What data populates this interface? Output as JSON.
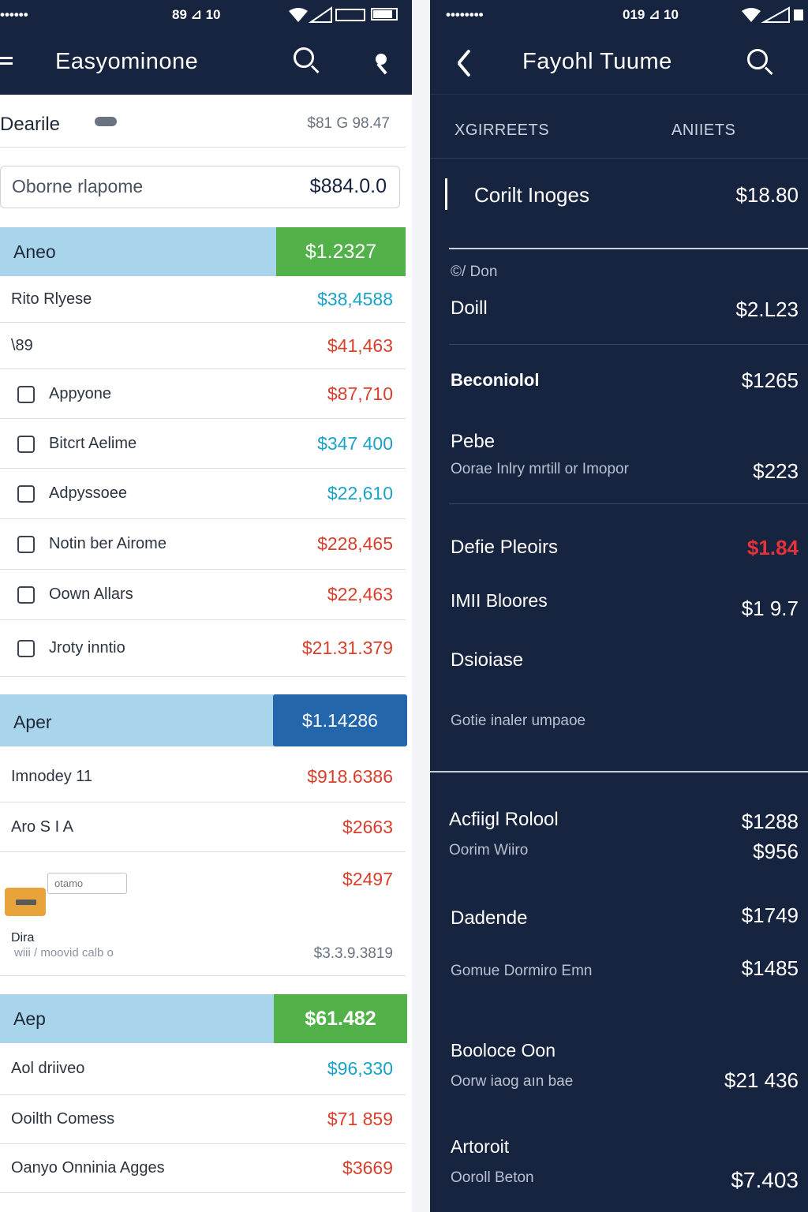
{
  "left": {
    "status": {
      "carrier": "••••••",
      "time": "89 ⊿ 10"
    },
    "header": {
      "title": "Easyominone"
    },
    "account": {
      "label": "Dearile",
      "value": "$81 G 98.47"
    },
    "search": {
      "placeholder": "Oborne rlapome",
      "value": "$884.0.0"
    },
    "section1": {
      "label": "Aneo",
      "amount": "$1.2327",
      "chip_color": "#53b14a",
      "rows": [
        {
          "label": "Rito Rlyese",
          "amount": "$38,4588",
          "color": "teal"
        },
        {
          "label": "\\89",
          "amount": "$41,463",
          "color": "red"
        },
        {
          "label": "Appyone",
          "amount": "$87,710",
          "color": "red",
          "icon": "grid-icon"
        },
        {
          "label": "Bitcrt Aelime",
          "amount": "$347 400",
          "color": "teal",
          "icon": "checkbox-icon"
        },
        {
          "label": "Adpyssoee",
          "amount": "$22,610",
          "color": "teal",
          "icon": "document-icon"
        },
        {
          "label": "Notin ber Airome",
          "amount": "$228,465",
          "color": "red",
          "icon": "file-icon"
        },
        {
          "label": "Oown Allars",
          "amount": "$22,463",
          "color": "red",
          "icon": "calendar-icon"
        },
        {
          "label": "Jroty inntio",
          "amount": "$21.31.379",
          "color": "red",
          "icon": "transfer-icon"
        }
      ]
    },
    "section2": {
      "label": "Aper",
      "amount": "$1.14286",
      "chip_color": "#2466ab",
      "rows": [
        {
          "label": "Imnodey 11",
          "amount": "$918.6386",
          "color": "red"
        },
        {
          "label": "Aro S I A",
          "amount": "$2663",
          "color": "red"
        }
      ],
      "entry": {
        "input_placeholder": "otamo",
        "amount_top": "$2497",
        "title": "Dira",
        "subtitle": "wiii  /  moovid calb o",
        "amount_bottom": "$3.3.9.3819"
      }
    },
    "section3": {
      "label": "Aep",
      "amount": "$61.482",
      "chip_color": "#53b14a",
      "rows": [
        {
          "label": "Aol driiveo",
          "amount": "$96,330",
          "color": "teal"
        },
        {
          "label": "Ooilth Comess",
          "amount": "$71 859",
          "color": "red"
        },
        {
          "label": "Oanyo Onninia Agges",
          "amount": "$3669",
          "color": "red"
        }
      ]
    }
  },
  "right": {
    "status": {
      "carrier": "••••••••",
      "time": "019 ⊿ 10"
    },
    "header": {
      "title": "Fayohl Tuume"
    },
    "tabs": [
      "XGIRREETS",
      "ANIIETS"
    ],
    "featured": {
      "label": "Corilt Inoges",
      "amount": "$18.80"
    },
    "section_label": "©/ Don",
    "items": [
      {
        "title": "Doill",
        "amount": "$2.L23"
      },
      {
        "title": "Beconiolol",
        "amount": "$1265"
      },
      {
        "title": "Pebe",
        "subtitle": "Oorae Inlry mrtill or Imopor",
        "amount": "$223"
      },
      {
        "title": "Defie Pleoirs",
        "amount": "$1.84",
        "alert": true
      },
      {
        "title": "IMII Bloores",
        "amount": "$1 9.7"
      },
      {
        "title": "Dsioiase",
        "subtitle": "Gotie inaler umpaoe"
      }
    ],
    "items2": [
      {
        "title": "Acfiigl Rolool",
        "subtitle": "Oorim Wiiro",
        "amount": "$1288",
        "amount2": "$956"
      },
      {
        "title": "Dadende",
        "subtitle": "Gomue Dormiro Emn",
        "amount": "$1749",
        "amount2": "$1485"
      },
      {
        "title": "Booloce Oon",
        "subtitle": "Oorw iaog aın bae",
        "amount": "$21 436"
      },
      {
        "title": "Artoroit",
        "subtitle": "Ooroll Beton",
        "amount": "$7.403"
      }
    ],
    "alert_color": "#e8323a"
  }
}
